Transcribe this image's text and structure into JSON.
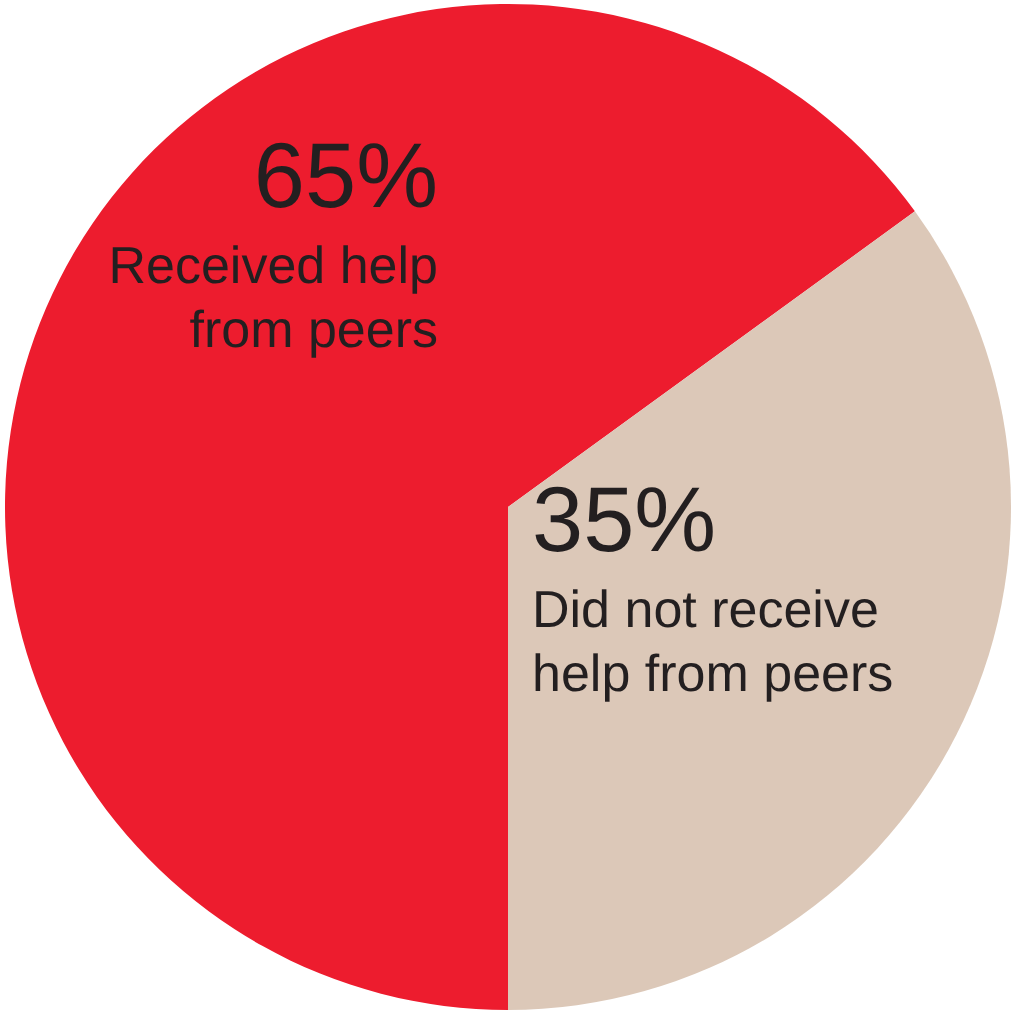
{
  "chart_data": {
    "type": "pie",
    "categories": [
      "Received help from peers",
      "Did not receive help from peers"
    ],
    "values": [
      65,
      35
    ],
    "colors": [
      "#ed1c2e",
      "#dcc8b8"
    ],
    "value_labels": [
      "65%",
      "35%"
    ],
    "legend": false
  }
}
